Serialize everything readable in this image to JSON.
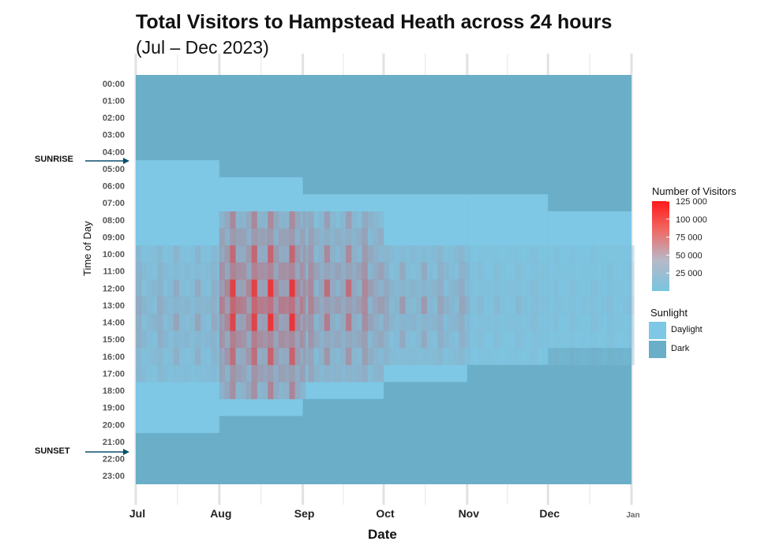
{
  "title": "Total Visitors to Hampstead Heath across 24 hours",
  "subtitle": "(Jul – Dec 2023)",
  "annotations": {
    "sunrise": "SUNRISE",
    "sunset": "SUNSET"
  },
  "chart_data": {
    "type": "heatmap",
    "xlabel": "Date",
    "ylabel": "Time of Day",
    "x_ticks": [
      "Jul",
      "Aug",
      "Sep",
      "Oct",
      "Nov",
      "Dec",
      "Jan"
    ],
    "x_range": [
      "2023-07-01",
      "2024-01-01"
    ],
    "y_ticks": [
      "00:00",
      "01:00",
      "02:00",
      "03:00",
      "04:00",
      "05:00",
      "06:00",
      "07:00",
      "08:00",
      "09:00",
      "10:00",
      "11:00",
      "12:00",
      "13:00",
      "14:00",
      "15:00",
      "16:00",
      "17:00",
      "18:00",
      "19:00",
      "20:00",
      "21:00",
      "22:00",
      "23:00"
    ],
    "color_scale": {
      "title": "Number of Visitors",
      "min": 0,
      "max": 125000,
      "ticks": [
        "125 000",
        "100 000",
        "75 000",
        "50 000",
        "25 000"
      ],
      "tick_values": [
        125000,
        100000,
        75000,
        50000,
        25000
      ],
      "low_color": "#78c5e0",
      "high_color": "#ff1a1a"
    },
    "sunlight_legend": {
      "title": "Sunlight",
      "items": [
        {
          "label": "Daylight",
          "color": "#7ec8e5"
        },
        {
          "label": "Dark",
          "color": "#6aaec8"
        }
      ]
    },
    "daylight_periods": [
      {
        "month": "Jul",
        "sunrise": "05:00",
        "sunset": "21:00"
      },
      {
        "month": "Aug",
        "sunrise": "06:00",
        "sunset": "20:00"
      },
      {
        "month": "Sep",
        "sunrise": "07:00",
        "sunset": "19:00"
      },
      {
        "month": "Oct",
        "sunrise": "07:00",
        "sunset": "18:00"
      },
      {
        "month": "Nov",
        "sunrise": "07:00",
        "sunset": "17:00"
      },
      {
        "month": "Dec",
        "sunrise": "08:00",
        "sunset": "16:00"
      }
    ],
    "peak_visitors_by_month": [
      {
        "month": "Jul",
        "peak_hours": "10:00–17:00",
        "approx_visitors": 40000
      },
      {
        "month": "Aug",
        "peak_hours": "08:00–18:00",
        "approx_visitors": 110000
      },
      {
        "month": "Sep",
        "peak_hours": "08:00–17:00",
        "approx_visitors": 75000
      },
      {
        "month": "Oct",
        "peak_hours": "10:00–16:00",
        "approx_visitors": 45000
      },
      {
        "month": "Nov",
        "peak_hours": "10:00–16:00",
        "approx_visitors": 20000
      },
      {
        "month": "Dec",
        "peak_hours": "10:00–16:00",
        "approx_visitors": 15000
      }
    ]
  }
}
